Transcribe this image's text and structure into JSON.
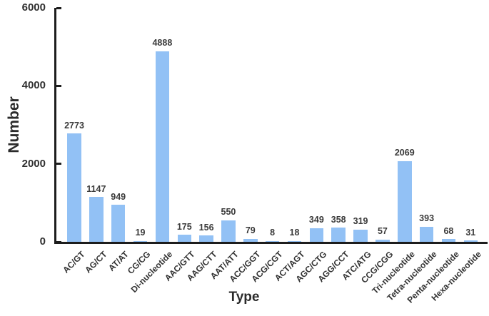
{
  "chart_data": {
    "type": "bar",
    "title": "",
    "xlabel": "Type",
    "ylabel": "Number",
    "categories": [
      "AC/GT",
      "AG/CT",
      "AT/AT",
      "CG/CG",
      "Di-nucleotide",
      "AAC/GTT",
      "AAG/CTT",
      "AAT/ATT",
      "ACC/GGT",
      "ACG/CGT",
      "ACT/AGT",
      "AGC/CTG",
      "AGG/CCT",
      "ATC/ATG",
      "CCG/CGG",
      "Tri-nucleotide",
      "Tetra-nucleotide",
      "Penta-nucleotide",
      "Hexa-nucleotide"
    ],
    "values": [
      2773,
      1147,
      949,
      19,
      4888,
      175,
      156,
      550,
      79,
      8,
      18,
      349,
      358,
      319,
      57,
      2069,
      393,
      68,
      31
    ],
    "value_labels_shown": true,
    "ylim": [
      0,
      6000
    ],
    "yticks": [
      0,
      2000,
      4000,
      6000
    ],
    "grid": false,
    "legend": null,
    "bar_color": "#92C1F5",
    "axis_color": "#1d1d1d",
    "text_color": "#303030",
    "x_tick_rotation_deg": 45
  }
}
